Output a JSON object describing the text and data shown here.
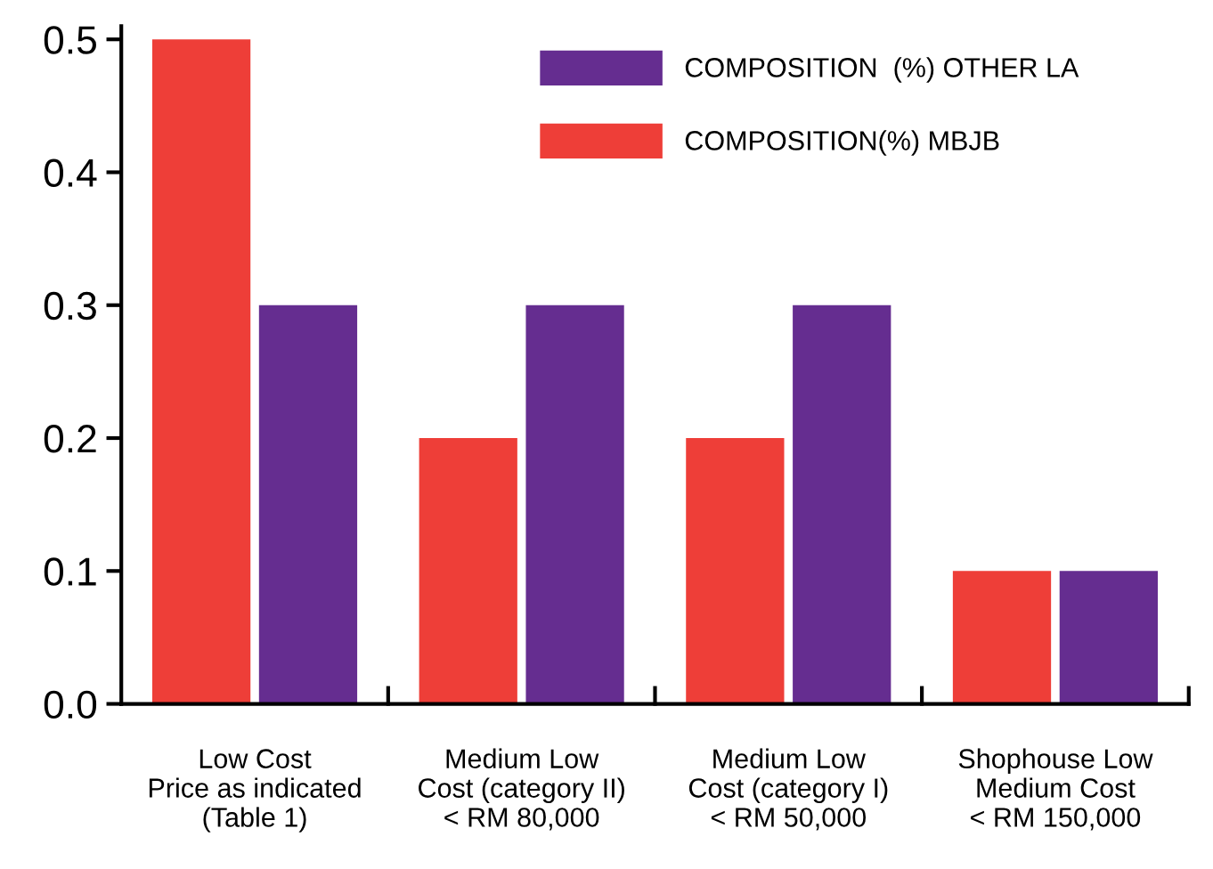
{
  "chart_data": {
    "type": "bar",
    "categories": [
      "Low Cost\nPrice as indicated\n(Table 1)",
      "Medium Low\nCost (category II)\n< RM 80,000",
      "Medium Low\nCost (category I)\n< RM 50,000",
      "Shophouse Low\nMedium Cost\n< RM 150,000"
    ],
    "series": [
      {
        "name": "COMPOSITION(%) MBJB",
        "color": "#ee3e38",
        "values": [
          0.5,
          0.2,
          0.2,
          0.1
        ]
      },
      {
        "name": "COMPOSITION  (%) OTHER LA",
        "color": "#652d90",
        "values": [
          0.3,
          0.3,
          0.3,
          0.1
        ]
      }
    ],
    "ylim": [
      0,
      0.51
    ],
    "yticks": [
      {
        "value": 0,
        "label": "0.0"
      },
      0.1,
      0.2,
      0.3,
      0.4,
      0.5
    ],
    "grid": false,
    "legend": "top right"
  }
}
